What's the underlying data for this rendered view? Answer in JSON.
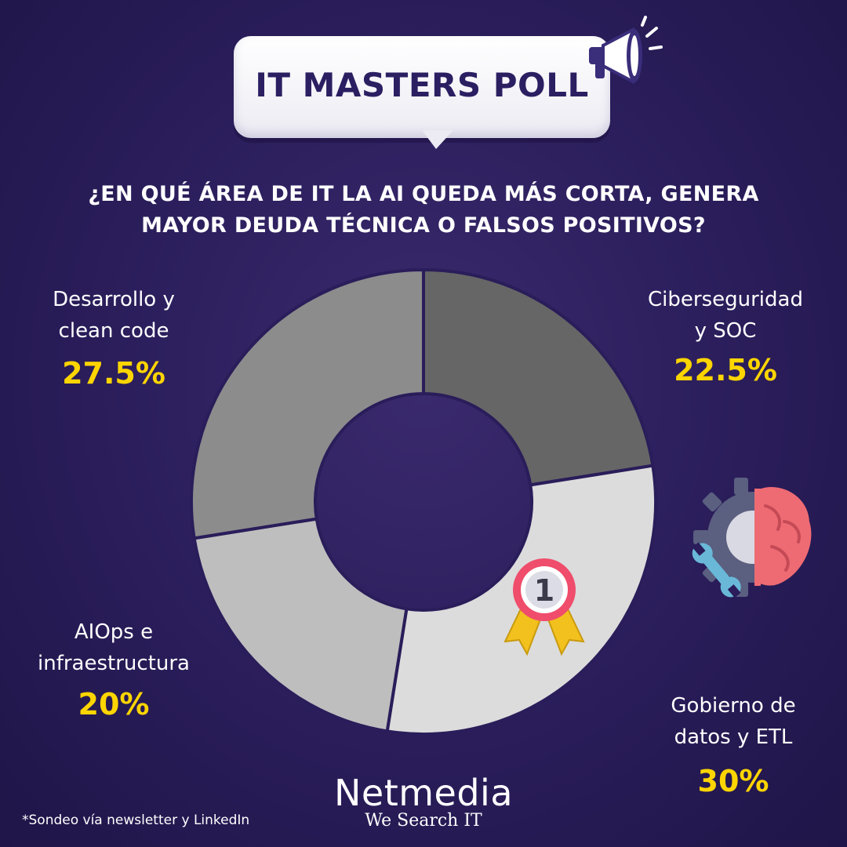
{
  "header": {
    "title": "IT MASTERS POLL",
    "question": "¿EN QUÉ ÁREA DE IT LA AI QUEDA MÁS CORTA, GENERA MAYOR DEUDA TÉCNICA O FALSOS POSITIVOS?"
  },
  "chart_data": {
    "type": "pie",
    "title": "",
    "categories": [
      "Ciberseguridad y SOC",
      "Gobierno de datos y ETL",
      "AIOps e infraestructura",
      "Desarrollo y clean code"
    ],
    "values": [
      22.5,
      30,
      20,
      27.5
    ],
    "value_labels": [
      "22.5%",
      "30%",
      "20%",
      "27.5%"
    ],
    "colors": [
      "#666666",
      "#dcdcdc",
      "#bebebe",
      "#8c8c8c"
    ],
    "donut": true,
    "start_angle_deg": 0,
    "direction": "clockwise",
    "highlight": "Gobierno de datos y ETL",
    "legend": "none"
  },
  "labels": [
    {
      "line1": "Ciberseguridad",
      "line2": "y SOC",
      "value": "22.5%"
    },
    {
      "line1": "Gobierno de",
      "line2": "datos y ETL",
      "value": "30%"
    },
    {
      "line1": "AIOps e",
      "line2": "infraestructura",
      "value": "20%"
    },
    {
      "line1": "Desarrollo y",
      "line2": "clean code",
      "value": "27.5%"
    }
  ],
  "medal": {
    "number": "1",
    "icon": "medal-icon"
  },
  "decor": {
    "megaphone": "megaphone-icon",
    "tech": "gear-brain-icon"
  },
  "brand": {
    "name": "Netmedia",
    "tagline": "We Search IT"
  },
  "footnote": "*Sondeo vía newsletter y LinkedIn"
}
